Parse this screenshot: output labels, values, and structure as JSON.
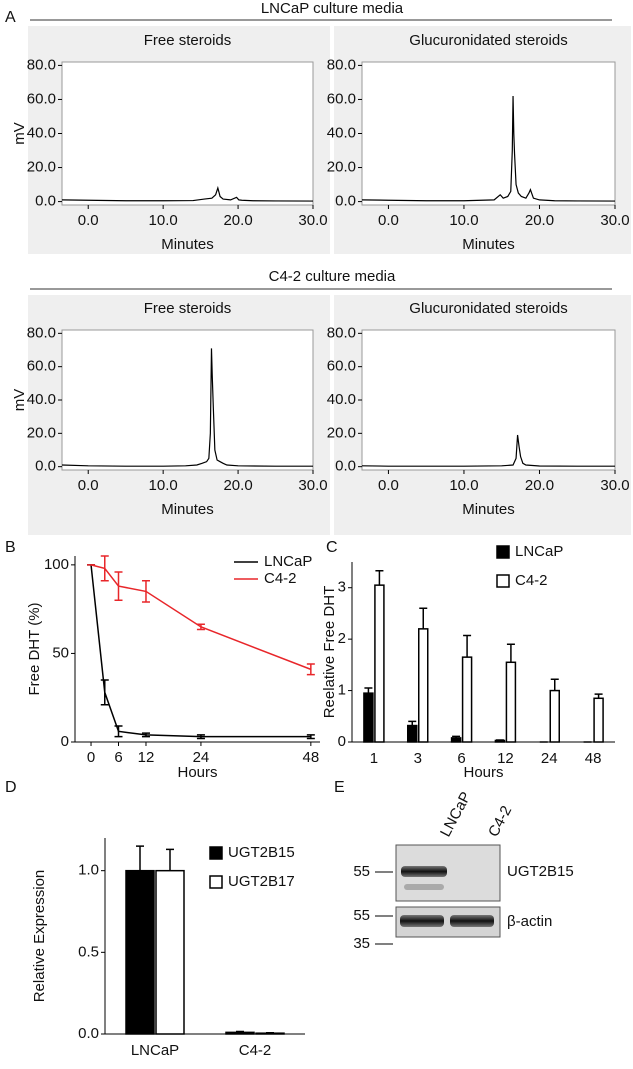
{
  "figure": {
    "panel_labels": [
      "A",
      "B",
      "C",
      "D",
      "E"
    ],
    "group_titles": [
      "LNCaP culture media",
      "C4-2 culture media"
    ]
  },
  "chart_data": [
    {
      "type": "line",
      "title": "Free steroids",
      "x_label": "Minutes",
      "y_label": "mV",
      "frame": true,
      "color": "#000000",
      "x": [
        -3.5,
        0,
        5,
        10,
        14,
        15.5,
        16.5,
        17,
        17.3,
        17.6,
        18,
        19,
        19.8,
        20.1,
        20.5,
        22,
        25,
        30
      ],
      "values": [
        1,
        0.8,
        0.5,
        0.5,
        0.6,
        1.5,
        2,
        4,
        8,
        3,
        1.5,
        1,
        2.5,
        1,
        0.8,
        0.5,
        0.4,
        0.3
      ],
      "xlim": [
        -3.5,
        30
      ],
      "ylim": [
        -2,
        82
      ],
      "xticks": [
        {
          "value": 0,
          "label": "0.0"
        },
        {
          "value": 10,
          "label": "10.0"
        },
        {
          "value": 20,
          "label": "20.0"
        },
        {
          "value": 30,
          "label": "30.0"
        }
      ],
      "yticks": [
        {
          "value": 0,
          "label": "0.0"
        },
        {
          "value": 20,
          "label": "20.0"
        },
        {
          "value": 40,
          "label": "40.0"
        },
        {
          "value": 60,
          "label": "60.0"
        },
        {
          "value": 80,
          "label": "80.0"
        }
      ]
    },
    {
      "type": "line",
      "title": "Glucuronidated steroids",
      "x_label": "Minutes",
      "frame": true,
      "color": "#000000",
      "x": [
        -3.5,
        0,
        5,
        10,
        14,
        14.8,
        15.2,
        15.8,
        16.2,
        16.4,
        16.5,
        16.6,
        16.7,
        16.9,
        17.2,
        17.6,
        18.2,
        18.6,
        18.8,
        19.2,
        20,
        22,
        25,
        30
      ],
      "values": [
        1,
        0.8,
        0.5,
        0.5,
        1,
        4,
        2,
        3,
        6,
        30,
        62,
        40,
        28,
        10,
        5,
        3,
        2,
        5,
        7,
        2,
        1,
        0.5,
        0.4,
        0.3
      ],
      "xlim": [
        -3.5,
        30
      ],
      "ylim": [
        -2,
        82
      ],
      "xticks": [
        {
          "value": 0,
          "label": "0.0"
        },
        {
          "value": 10,
          "label": "10.0"
        },
        {
          "value": 20,
          "label": "20.0"
        },
        {
          "value": 30,
          "label": "30.0"
        }
      ],
      "yticks": [
        {
          "value": 0,
          "label": "0.0"
        },
        {
          "value": 20,
          "label": "20.0"
        },
        {
          "value": 40,
          "label": "40.0"
        },
        {
          "value": 60,
          "label": "60.0"
        },
        {
          "value": 80,
          "label": "80.0"
        }
      ]
    },
    {
      "type": "line",
      "title": "Free steroids",
      "x_label": "Minutes",
      "y_label": "mV",
      "frame": true,
      "color": "#000000",
      "x": [
        -3.5,
        0,
        5,
        10,
        13,
        14.5,
        15.2,
        15.8,
        16.1,
        16.3,
        16.45,
        16.55,
        16.7,
        16.9,
        17.2,
        17.6,
        18,
        18.5,
        20,
        25,
        30
      ],
      "values": [
        1,
        0.5,
        0.3,
        0.3,
        0.5,
        1,
        2,
        3,
        5,
        20,
        71,
        55,
        35,
        10,
        4,
        3,
        2,
        1,
        0.5,
        0.3,
        0.3
      ],
      "xlim": [
        -3.5,
        30
      ],
      "ylim": [
        -2,
        82
      ],
      "xticks": [
        {
          "value": 0,
          "label": "0.0"
        },
        {
          "value": 10,
          "label": "10.0"
        },
        {
          "value": 20,
          "label": "20.0"
        },
        {
          "value": 30,
          "label": "30.0"
        }
      ],
      "yticks": [
        {
          "value": 0,
          "label": "0.0"
        },
        {
          "value": 20,
          "label": "20.0"
        },
        {
          "value": 40,
          "label": "40.0"
        },
        {
          "value": 60,
          "label": "60.0"
        },
        {
          "value": 80,
          "label": "80.0"
        }
      ]
    },
    {
      "type": "line",
      "title": "Glucuronidated steroids",
      "x_label": "Minutes",
      "frame": true,
      "color": "#000000",
      "x": [
        -3.5,
        0,
        5,
        10,
        15,
        16.5,
        16.9,
        17.1,
        17.3,
        17.5,
        17.8,
        18.2,
        20,
        25,
        30
      ],
      "values": [
        0.5,
        0.3,
        0.3,
        0.3,
        0.5,
        1,
        5,
        19,
        12,
        6,
        2,
        1,
        0.4,
        0.3,
        0.3
      ],
      "xlim": [
        -3.5,
        30
      ],
      "ylim": [
        -2,
        82
      ],
      "xticks": [
        {
          "value": 0,
          "label": "0.0"
        },
        {
          "value": 10,
          "label": "10.0"
        },
        {
          "value": 20,
          "label": "20.0"
        },
        {
          "value": 30,
          "label": "30.0"
        }
      ],
      "yticks": [
        {
          "value": 0,
          "label": "0.0"
        },
        {
          "value": 20,
          "label": "20.0"
        },
        {
          "value": 40,
          "label": "40.0"
        },
        {
          "value": 60,
          "label": "60.0"
        },
        {
          "value": 80,
          "label": "80.0"
        }
      ]
    },
    {
      "type": "line",
      "x_label": "Hours",
      "y_label": "Free DHT (%)",
      "frame": false,
      "legend": "upper right",
      "x": [
        0,
        3,
        6,
        12,
        24,
        48
      ],
      "series": [
        {
          "name": "LNCaP",
          "color": "#000000",
          "values": [
            100,
            28,
            6,
            4,
            3,
            3
          ],
          "errors": [
            0,
            7,
            3,
            1,
            1,
            1
          ]
        },
        {
          "name": "C4-2",
          "color": "#e8262a",
          "values": [
            100,
            98,
            88,
            85,
            65,
            41
          ],
          "errors": [
            0,
            7,
            8,
            6,
            1.5,
            3
          ]
        }
      ],
      "xlim": [
        -3.5,
        50
      ],
      "ylim": [
        0,
        105
      ],
      "xticks": [
        0,
        6,
        12,
        24,
        48
      ],
      "yticks": [
        0,
        50,
        100
      ]
    },
    {
      "type": "bar",
      "x_label": "Hours",
      "y_label": "Reelative Free DHT",
      "legend": "upper right",
      "categories": [
        "1",
        "3",
        "6",
        "12",
        "24",
        "48"
      ],
      "series": [
        {
          "name": "LNCaP",
          "color": "#000000",
          "values": [
            0.95,
            0.32,
            0.08,
            0.03,
            0,
            0
          ],
          "errors": [
            0.1,
            0.08,
            0.03,
            0.01,
            0,
            0
          ]
        },
        {
          "name": "C4-2",
          "color": "#ffffff",
          "values": [
            3.05,
            2.2,
            1.65,
            1.55,
            1.0,
            0.85
          ],
          "errors": [
            0.28,
            0.4,
            0.42,
            0.35,
            0.22,
            0.08
          ]
        }
      ],
      "ylim": [
        0,
        3.5
      ],
      "yticks": [
        0,
        1,
        2,
        3
      ]
    },
    {
      "type": "bar",
      "y_label": "Relative Expression",
      "legend": "upper right",
      "categories": [
        "LNCaP",
        "C4-2"
      ],
      "series": [
        {
          "name": "UGT2B15",
          "color": "#000000",
          "values": [
            1.0,
            0.01
          ],
          "errors": [
            0.15,
            0.005
          ]
        },
        {
          "name": "UGT2B17",
          "color": "#ffffff",
          "values": [
            1.0,
            0.005
          ],
          "errors": [
            0.13,
            0.003
          ]
        }
      ],
      "ylim": [
        0,
        1.2
      ],
      "yticks": [
        {
          "value": 0,
          "label": "0.0"
        },
        {
          "value": 0.5,
          "label": "0.5"
        },
        {
          "value": 1.0,
          "label": "1.0"
        }
      ]
    }
  ],
  "blot": {
    "lanes": [
      "LNCaP",
      "C4-2"
    ],
    "markers": [
      "55",
      "55",
      "35"
    ],
    "proteins": [
      "UGT2B15",
      "β-actin"
    ]
  }
}
